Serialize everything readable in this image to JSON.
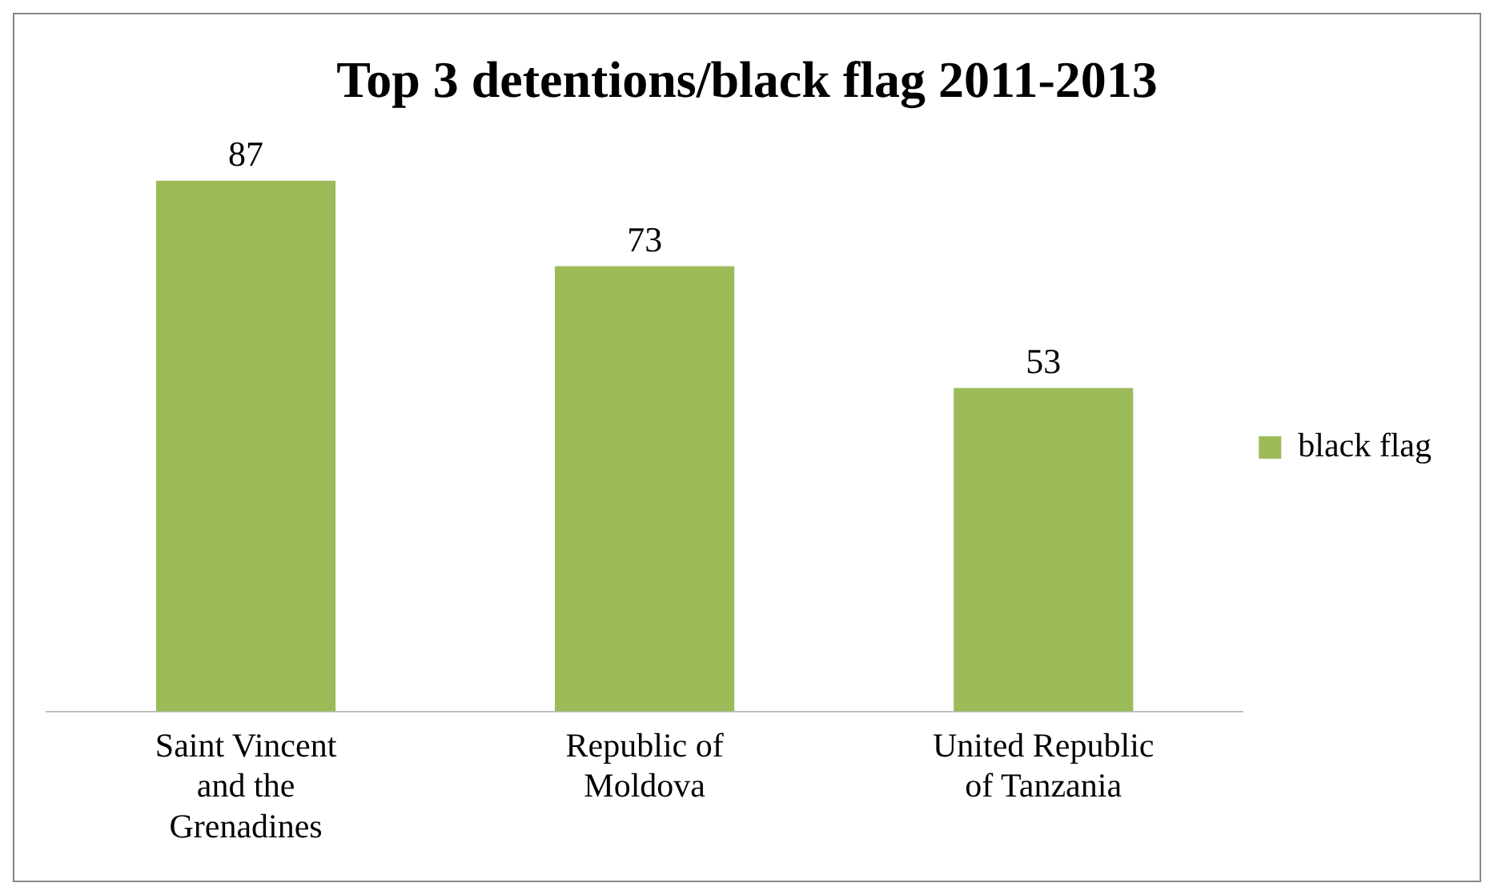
{
  "chart_data": {
    "type": "bar",
    "title": "Top 3 detentions/black flag 2011-2013",
    "categories": [
      "Saint Vincent and the Grenadines",
      "Republic of Moldova",
      "United Republic of Tanzania"
    ],
    "series": [
      {
        "name": "black flag",
        "color": "#9bbb59",
        "values": [
          87,
          73,
          53
        ]
      }
    ],
    "data_labels": true,
    "legend": "right",
    "grid": false
  }
}
